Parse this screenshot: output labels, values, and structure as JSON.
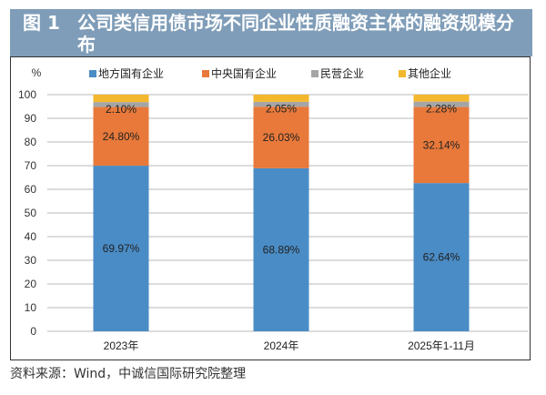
{
  "header": {
    "figure_label": "图 1",
    "title": "公司类信用债市场不同企业性质融资主体的融资规模分布"
  },
  "source": "资料来源：Wind，中诚信国际研究院整理",
  "chart_data": {
    "type": "bar",
    "stacked": true,
    "title": "公司类信用债市场不同企业性质融资主体的融资规模分布",
    "ylabel": "%",
    "ylim": [
      0,
      100
    ],
    "yticks": [
      0,
      10,
      20,
      30,
      40,
      50,
      60,
      70,
      80,
      90,
      100
    ],
    "categories": [
      "2023年",
      "2024年",
      "2025年1-11月"
    ],
    "legend_position": "top",
    "series": [
      {
        "name": "地方国有企业",
        "color": "#4a8cc6",
        "values": [
          69.97,
          68.89,
          62.64
        ],
        "labels": [
          "69.97%",
          "68.89%",
          "62.64%"
        ]
      },
      {
        "name": "中央国有企业",
        "color": "#e8793a",
        "values": [
          24.8,
          26.03,
          32.14
        ],
        "labels": [
          "24.80%",
          "26.03%",
          "32.14%"
        ]
      },
      {
        "name": "民营企业",
        "color": "#a5a5a5",
        "values": [
          2.1,
          2.05,
          2.28
        ],
        "labels": [
          "2.10%",
          "2.05%",
          "2.28%"
        ]
      },
      {
        "name": "其他企业",
        "color": "#f4b82e",
        "values": [
          3.13,
          3.03,
          2.94
        ]
      }
    ]
  }
}
